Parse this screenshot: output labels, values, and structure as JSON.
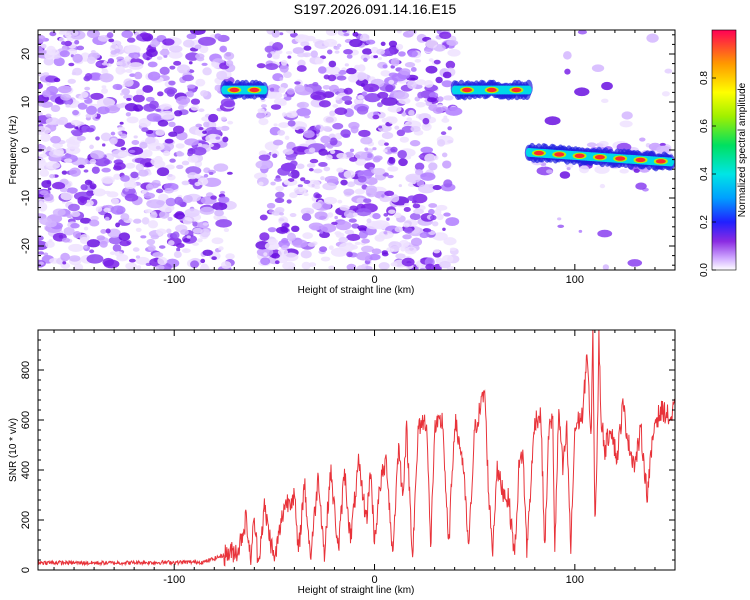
{
  "title": "S197.2026.091.14.16.E15",
  "chart_data": [
    {
      "type": "heatmap",
      "xlabel": "Height of straight line (km)",
      "ylabel": "Frequency (Hz)",
      "xlim": [
        -168,
        150
      ],
      "ylim": [
        -25,
        25
      ],
      "xticks": [
        -100,
        0,
        100
      ],
      "xtick_labels": [
        "-100",
        "0",
        "100"
      ],
      "yticks": [
        -20,
        -10,
        0,
        10,
        20
      ],
      "ytick_labels": [
        "-20",
        "-10",
        "0",
        "10",
        "20"
      ],
      "colorbar": {
        "label": "Normalized spectral amplitude",
        "range": [
          0,
          1
        ],
        "ticks": [
          0,
          0.2,
          0.4,
          0.6,
          0.8
        ],
        "tick_labels": [
          "0.0",
          "0.2",
          "0.4",
          "0.6",
          "0.8"
        ]
      },
      "signal_tracks": [
        {
          "x_start": -75,
          "x_end": -55,
          "freq": 12.5
        },
        {
          "x_start": 40,
          "x_end": 77,
          "freq": 12.5
        },
        {
          "x_start": 77,
          "x_end": 148,
          "freq_start": -0.5,
          "freq_end": -2.5
        }
      ],
      "gap_regions": [
        [
          -72,
          -57
        ],
        [
          40,
          77
        ]
      ]
    },
    {
      "type": "line",
      "xlabel": "Height of straight line (km)",
      "ylabel": "SNR (10 * v/v)",
      "xlim": [
        -168,
        150
      ],
      "ylim": [
        0,
        960
      ],
      "xticks": [
        -100,
        0,
        100
      ],
      "xtick_labels": [
        "-100",
        "0",
        "100"
      ],
      "yticks": [
        0,
        200,
        400,
        600,
        800
      ],
      "ytick_labels": [
        "0",
        "200",
        "400",
        "600",
        "800"
      ],
      "color": "#e8333a",
      "series": [
        {
          "name": "SNR",
          "x": [
            -168,
            -140,
            -110,
            -85,
            -68,
            -64,
            -62,
            -60,
            -58,
            -55,
            -52,
            -50,
            -45,
            -40,
            -38,
            -35,
            -32,
            -28,
            -25,
            -22,
            -18,
            -15,
            -12,
            -8,
            -4,
            -2,
            0,
            3,
            6,
            9,
            12,
            14,
            16,
            19,
            22,
            26,
            28,
            30,
            34,
            37,
            40,
            44,
            47,
            50,
            52,
            55,
            57,
            59,
            61,
            64,
            67,
            70,
            72,
            74,
            76,
            80,
            83,
            85,
            87,
            89,
            90,
            92,
            94,
            96,
            98,
            100,
            102,
            104,
            106,
            107,
            108,
            109,
            110,
            111,
            112,
            113,
            115,
            118,
            121,
            124,
            127,
            130,
            133,
            136,
            140,
            144,
            148,
            150
          ],
          "y": [
            30,
            28,
            30,
            32,
            80,
            210,
            40,
            200,
            30,
            250,
            120,
            40,
            260,
            300,
            60,
            350,
            50,
            380,
            60,
            400,
            80,
            400,
            120,
            420,
            200,
            400,
            120,
            350,
            440,
            60,
            500,
            300,
            560,
            60,
            580,
            600,
            80,
            560,
            600,
            80,
            600,
            440,
            80,
            560,
            620,
            720,
            300,
            80,
            400,
            320,
            280,
            60,
            400,
            480,
            80,
            600,
            620,
            80,
            560,
            600,
            80,
            640,
            400,
            560,
            80,
            560,
            600,
            620,
            880,
            700,
            500,
            960,
            200,
            400,
            940,
            620,
            480,
            580,
            440,
            660,
            500,
            420,
            560,
            300,
            600,
            640,
            600,
            660
          ]
        }
      ]
    }
  ]
}
